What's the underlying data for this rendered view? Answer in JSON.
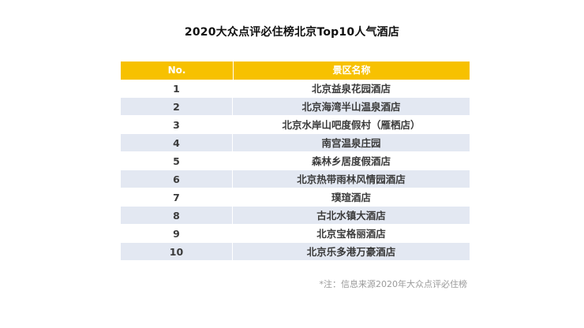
{
  "title": "2020大众点评必住榜北京Top10人气酒店",
  "table": {
    "headers": {
      "no": "No.",
      "name": "景区名称"
    },
    "rows": [
      {
        "no": "1",
        "name": "北京益泉花园酒店"
      },
      {
        "no": "2",
        "name": "北京海湾半山温泉酒店"
      },
      {
        "no": "3",
        "name": "北京水岸山吧度假村（雁栖店）"
      },
      {
        "no": "4",
        "name": "南宫温泉庄园"
      },
      {
        "no": "5",
        "name": "森林乡居度假酒店"
      },
      {
        "no": "6",
        "name": "北京热带雨林风情园酒店"
      },
      {
        "no": "7",
        "name": "璞瑄酒店"
      },
      {
        "no": "8",
        "name": "古北水镇大酒店"
      },
      {
        "no": "9",
        "name": "北京宝格丽酒店"
      },
      {
        "no": "10",
        "name": "北京乐多港万豪酒店"
      }
    ]
  },
  "note": "*注：信息来源2020年大众点评必住榜",
  "colors": {
    "header_bg": "#f7c100",
    "stripe_bg": "#e3e8f2"
  }
}
